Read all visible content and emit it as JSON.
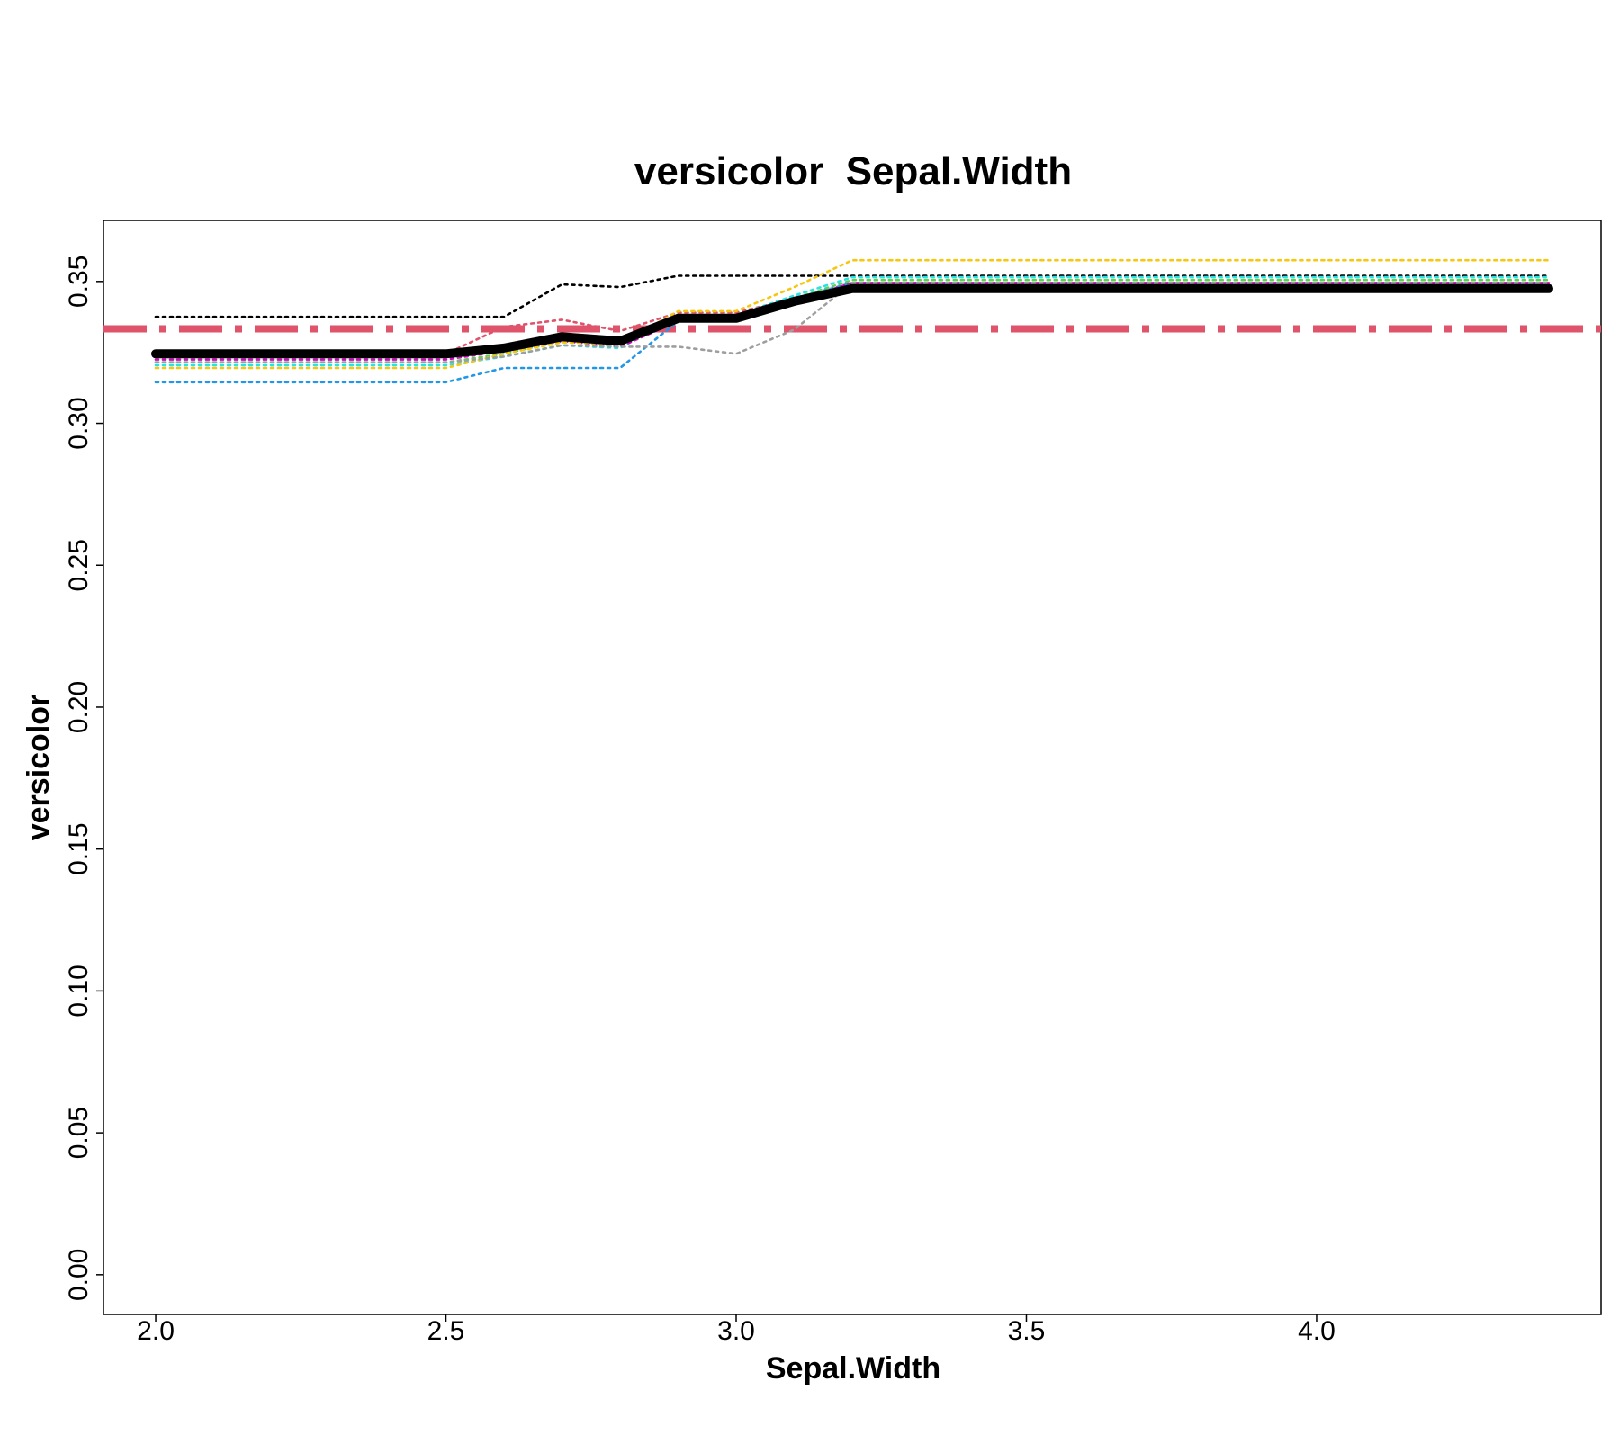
{
  "chart_data": {
    "type": "line",
    "title": "versicolor  Sepal.Width",
    "xlabel": "Sepal.Width",
    "ylabel": "versicolor",
    "xlim": [
      1.91,
      4.49
    ],
    "ylim": [
      -0.014,
      0.3715
    ],
    "x_ticks": [
      "2.0",
      "2.5",
      "3.0",
      "3.5",
      "4.0"
    ],
    "y_ticks": [
      "0.00",
      "0.05",
      "0.10",
      "0.15",
      "0.20",
      "0.25",
      "0.30",
      "0.35"
    ],
    "grid": false,
    "x": [
      2.0,
      2.2,
      2.3,
      2.4,
      2.5,
      2.6,
      2.7,
      2.8,
      2.9,
      3.0,
      3.1,
      3.2,
      3.3,
      3.4,
      3.5,
      3.6,
      3.7,
      3.8,
      3.9,
      4.0,
      4.1,
      4.2,
      4.4
    ],
    "reference_line": {
      "y": 0.3333,
      "color": "#DF536B",
      "style": "dashdot"
    },
    "series": [
      {
        "role": "average",
        "color": "#000000",
        "style": "solid",
        "values": [
          0.3245,
          0.3245,
          0.3245,
          0.3245,
          0.3245,
          0.3265,
          0.3305,
          0.329,
          0.337,
          0.337,
          0.343,
          0.3475,
          0.3475,
          0.3475,
          0.3475,
          0.3475,
          0.3475,
          0.3475,
          0.3475,
          0.3475,
          0.3475,
          0.3475,
          0.3475
        ]
      },
      {
        "color": "#000000",
        "style": "dotted",
        "values": [
          0.3375,
          0.3375,
          0.3375,
          0.3375,
          0.3375,
          0.3375,
          0.349,
          0.348,
          0.352,
          0.352,
          0.352,
          0.352,
          0.352,
          0.352,
          0.352,
          0.352,
          0.352,
          0.352,
          0.352,
          0.352,
          0.352,
          0.352,
          0.352
        ]
      },
      {
        "color": "#DF536B",
        "style": "dotted",
        "values": [
          0.3245,
          0.3245,
          0.3245,
          0.3245,
          0.3245,
          0.334,
          0.3365,
          0.3325,
          0.339,
          0.339,
          0.344,
          0.349,
          0.349,
          0.349,
          0.349,
          0.349,
          0.349,
          0.349,
          0.349,
          0.349,
          0.349,
          0.349,
          0.349
        ]
      },
      {
        "color": "#61D04F",
        "style": "dotted",
        "values": [
          0.3215,
          0.3215,
          0.3215,
          0.3215,
          0.3215,
          0.3245,
          0.329,
          0.327,
          0.338,
          0.338,
          0.344,
          0.3505,
          0.3505,
          0.3505,
          0.3505,
          0.3505,
          0.3505,
          0.3505,
          0.3505,
          0.3505,
          0.3505,
          0.3505,
          0.3505
        ]
      },
      {
        "color": "#2297E6",
        "style": "dotted",
        "values": [
          0.3145,
          0.3145,
          0.3145,
          0.3145,
          0.3145,
          0.3195,
          0.3195,
          0.3195,
          0.336,
          0.336,
          0.344,
          0.3495,
          0.3495,
          0.3495,
          0.3495,
          0.3495,
          0.3495,
          0.3495,
          0.3495,
          0.3495,
          0.3495,
          0.3495,
          0.3495
        ]
      },
      {
        "color": "#28E2E5",
        "style": "dotted",
        "values": [
          0.3205,
          0.3205,
          0.3205,
          0.3205,
          0.3205,
          0.3235,
          0.3275,
          0.3265,
          0.338,
          0.338,
          0.345,
          0.3515,
          0.3515,
          0.3515,
          0.3515,
          0.3515,
          0.3515,
          0.3515,
          0.3515,
          0.3515,
          0.3515,
          0.3515,
          0.3515
        ]
      },
      {
        "color": "#CD0BBC",
        "style": "dotted",
        "values": [
          0.3225,
          0.3225,
          0.3225,
          0.3225,
          0.3225,
          0.3255,
          0.329,
          0.327,
          0.336,
          0.336,
          0.343,
          0.3495,
          0.3495,
          0.3495,
          0.3495,
          0.3495,
          0.3495,
          0.3495,
          0.3495,
          0.3495,
          0.3495,
          0.3495,
          0.3495
        ]
      },
      {
        "color": "#F5C710",
        "style": "dotted",
        "values": [
          0.3195,
          0.3195,
          0.3195,
          0.3195,
          0.3195,
          0.3245,
          0.3285,
          0.328,
          0.3395,
          0.3395,
          0.348,
          0.3575,
          0.3575,
          0.3575,
          0.3575,
          0.3575,
          0.3575,
          0.3575,
          0.3575,
          0.3575,
          0.3575,
          0.3575,
          0.3575
        ]
      },
      {
        "color": "#9E9E9E",
        "style": "dotted",
        "values": [
          0.3215,
          0.3215,
          0.3215,
          0.3215,
          0.3215,
          0.3235,
          0.3275,
          0.327,
          0.327,
          0.3245,
          0.333,
          0.3495,
          0.3495,
          0.3495,
          0.3495,
          0.3495,
          0.3495,
          0.3495,
          0.3495,
          0.3495,
          0.3495,
          0.3495,
          0.3495
        ]
      }
    ]
  }
}
